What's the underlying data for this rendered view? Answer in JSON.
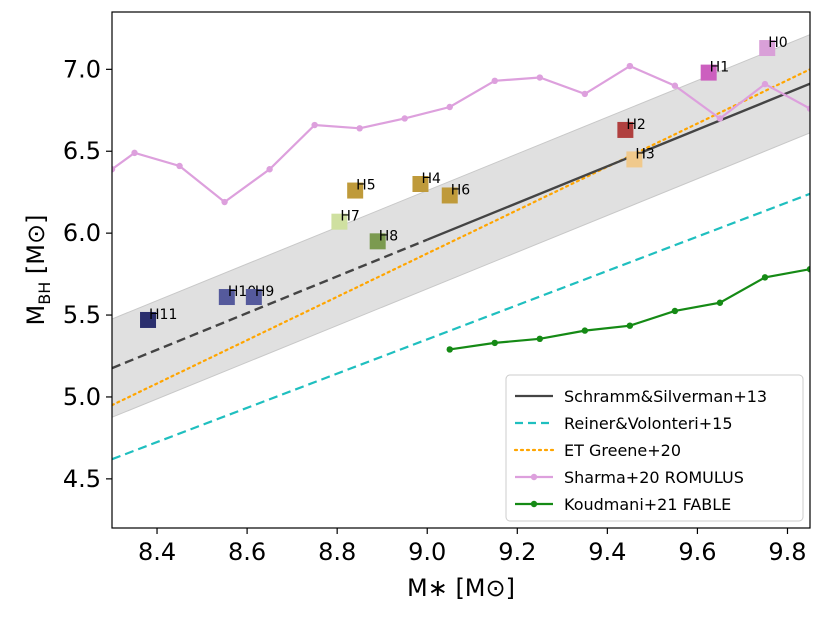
{
  "chart_data": {
    "type": "scatter",
    "xlabel": "M∗ [M⊙]",
    "ylabel": "M_BH [M⊙]",
    "xlim": [
      8.3,
      9.85
    ],
    "ylim": [
      4.2,
      7.35
    ],
    "xticks": [
      8.4,
      8.6,
      8.8,
      9.0,
      9.2,
      9.4,
      9.6,
      9.8
    ],
    "xtick_labels": [
      "8.4",
      "8.6",
      "8.8",
      "9.0",
      "9.2",
      "9.4",
      "9.6",
      "9.8"
    ],
    "yticks": [
      4.5,
      5.0,
      5.5,
      6.0,
      6.5,
      7.0
    ],
    "ytick_labels": [
      "4.5",
      "5.0",
      "5.5",
      "6.0",
      "6.5",
      "7.0"
    ],
    "grid": false,
    "legend_position": "lower-right",
    "points": [
      {
        "label": "H0",
        "x": 9.755,
        "y": 7.13,
        "color": "#d9a0d8"
      },
      {
        "label": "H1",
        "x": 9.625,
        "y": 6.98,
        "color": "#cc5fbf"
      },
      {
        "label": "H2",
        "x": 9.44,
        "y": 6.63,
        "color": "#b0403f"
      },
      {
        "label": "H3",
        "x": 9.46,
        "y": 6.45,
        "color": "#f0c98c"
      },
      {
        "label": "H4",
        "x": 8.985,
        "y": 6.3,
        "color": "#bf9a3a"
      },
      {
        "label": "H5",
        "x": 8.84,
        "y": 6.26,
        "color": "#bf9a3a"
      },
      {
        "label": "H6",
        "x": 9.05,
        "y": 6.23,
        "color": "#bf9a3a"
      },
      {
        "label": "H7",
        "x": 8.805,
        "y": 6.07,
        "color": "#cfe0a0"
      },
      {
        "label": "H8",
        "x": 8.89,
        "y": 5.95,
        "color": "#7b9a50"
      },
      {
        "label": "H10",
        "x": 8.555,
        "y": 5.61,
        "color": "#555a9c"
      },
      {
        "label": "H9",
        "x": 8.615,
        "y": 5.61,
        "color": "#555a9c"
      },
      {
        "label": "H11",
        "x": 8.38,
        "y": 5.47,
        "color": "#2b2f6e"
      }
    ],
    "series": [
      {
        "name": "Schramm&Silverman+13",
        "kind": "line",
        "color": "#444444",
        "x": [
          8.3,
          9.85
        ],
        "y": [
          5.176,
          6.912
        ],
        "solid_from_x": 9.0
      },
      {
        "name": "Reiner&Volonteri+15",
        "kind": "line",
        "color": "#1fbfbf",
        "x": [
          8.3,
          9.85
        ],
        "y": [
          4.62,
          6.24
        ]
      },
      {
        "name": "ET Greene+20",
        "kind": "line",
        "color": "#ffa500",
        "x": [
          8.3,
          9.85
        ],
        "y": [
          4.95,
          7.0
        ]
      },
      {
        "name": "Sharma+20 ROMULUS",
        "kind": "line-marker",
        "color": "#dda0dd",
        "x": [
          8.3,
          8.35,
          8.45,
          8.55,
          8.65,
          8.75,
          8.85,
          8.95,
          9.05,
          9.15,
          9.25,
          9.35,
          9.45,
          9.55,
          9.65,
          9.75,
          9.85
        ],
        "y": [
          6.39,
          6.49,
          6.41,
          6.19,
          6.39,
          6.66,
          6.64,
          6.7,
          6.77,
          6.93,
          6.95,
          6.85,
          7.02,
          6.9,
          6.7,
          6.91,
          6.76
        ]
      },
      {
        "name": "Koudmani+21 FABLE",
        "kind": "line-marker",
        "color": "#158a15",
        "x": [
          9.05,
          9.15,
          9.25,
          9.35,
          9.45,
          9.55,
          9.65,
          9.75,
          9.85
        ],
        "y": [
          5.29,
          5.33,
          5.355,
          5.405,
          5.435,
          5.525,
          5.575,
          5.73,
          5.78
        ]
      }
    ],
    "scatter_band": {
      "offset": 0.3
    }
  },
  "legend": [
    {
      "label": "Schramm&Silverman+13",
      "color": "#444444",
      "style": "solid"
    },
    {
      "label": "Reiner&Volonteri+15",
      "color": "#1fbfbf",
      "style": "dashed"
    },
    {
      "label": "ET Greene+20",
      "color": "#ffa500",
      "style": "dotted"
    },
    {
      "label": "Sharma+20 ROMULUS",
      "color": "#dda0dd",
      "style": "line-marker"
    },
    {
      "label": "Koudmani+21 FABLE",
      "color": "#158a15",
      "style": "line-marker"
    }
  ]
}
